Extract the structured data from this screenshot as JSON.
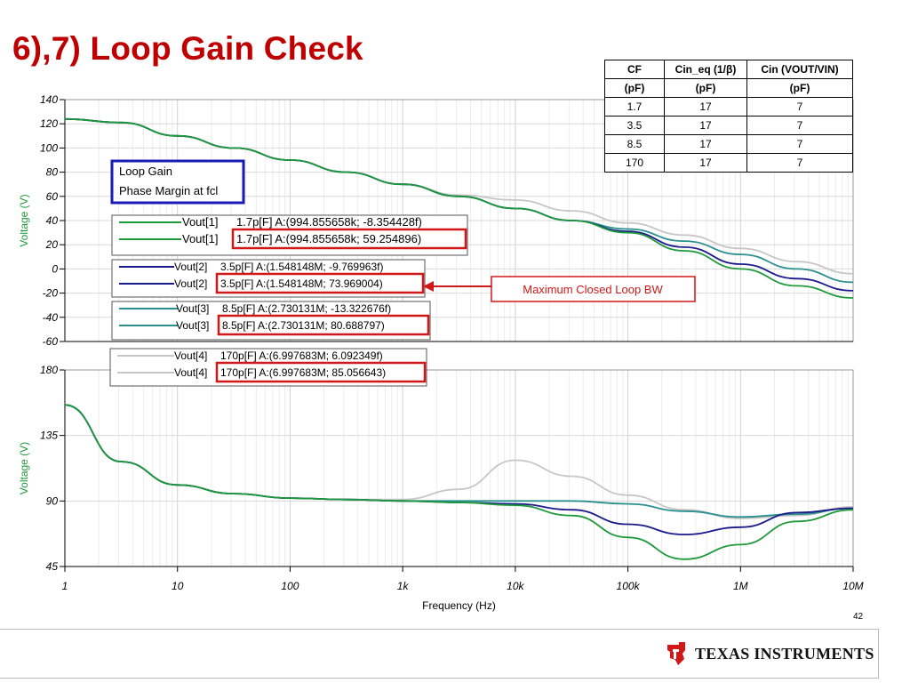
{
  "title": "6),7) Loop Gain Check",
  "table": {
    "headers": [
      "CF",
      "Cin_eq (1/β)",
      "Cin (VOUT/VIN)"
    ],
    "units": [
      "(pF)",
      "(pF)",
      "(pF)"
    ],
    "rows": [
      [
        "1.7",
        "17",
        "7"
      ],
      [
        "3.5",
        "17",
        "7"
      ],
      [
        "8.5",
        "17",
        "7"
      ],
      [
        "170",
        "17",
        "7"
      ]
    ]
  },
  "page_number": "42",
  "brand": "Texas Instruments",
  "colors": {
    "title": "#c00000",
    "green": "#1e9a3a",
    "navy": "#1a1a8c",
    "teal": "#2a8f8f",
    "gray": "#c6c6c6",
    "callout_blue": "#1a1ab4",
    "callout_red": "#d01818"
  },
  "chart_data": [
    {
      "type": "line",
      "xlabel": "Frequency (Hz)",
      "ylabel": "Voltage (V)",
      "x_scale": "log",
      "xlim": [
        1,
        10000000
      ],
      "ylim": [
        -60,
        140
      ],
      "x_ticks": [
        "1",
        "10",
        "100",
        "1k",
        "10k",
        "100k",
        "1M",
        "10M"
      ],
      "y_ticks": [
        "140",
        "120",
        "100",
        "80",
        "60",
        "40",
        "20",
        "0",
        "-20",
        "-40",
        "-60"
      ],
      "grid": true,
      "annotation": {
        "box": [
          "Loop Gain",
          "Phase Margin at fcl"
        ]
      },
      "legend": [
        {
          "series": "Vout[1]",
          "label": "1.7p[F]",
          "cursor_gain": "A:(994.855658k; -8.354428f)",
          "cursor_phase": "A:(994.855658k; 59.254896)"
        },
        {
          "series": "Vout[2]",
          "label": "3.5p[F]",
          "cursor_gain": "A:(1.548148M; -9.769963f)",
          "cursor_phase": "A:(1.548148M; 73.969004)"
        },
        {
          "series": "Vout[3]",
          "label": "8.5p[F]",
          "cursor_gain": "A:(2.730131M; -13.322676f)",
          "cursor_phase": "A:(2.730131M; 80.688797)"
        },
        {
          "series": "Vout[4]",
          "label": "170p[F]",
          "cursor_gain": "A:(6.997683M; 6.092349f)",
          "cursor_phase": "A:(6.997683M; 85.056643)"
        }
      ],
      "callout": "Maximum Closed Loop BW",
      "x": [
        1,
        3.16,
        10,
        31.6,
        100,
        316,
        1000,
        3160,
        10000,
        31600,
        100000,
        316000,
        1000000,
        3160000,
        10000000
      ],
      "series": [
        {
          "name": "Vout[1]",
          "color": "#1e9a3a",
          "values": [
            124,
            121,
            110,
            100,
            90,
            80,
            70,
            60,
            50,
            40,
            30,
            15,
            0,
            -14,
            -24
          ]
        },
        {
          "name": "Vout[2]",
          "color": "#1a1a8c",
          "values": [
            124,
            121,
            110,
            100,
            90,
            80,
            70,
            60,
            50,
            40,
            31,
            18,
            4,
            -8,
            -18
          ]
        },
        {
          "name": "Vout[3]",
          "color": "#2a8f8f",
          "values": [
            124,
            121,
            110,
            100,
            90,
            80,
            70,
            60,
            50,
            40,
            33,
            23,
            12,
            0,
            -11
          ]
        },
        {
          "name": "Vout[4]",
          "color": "#c6c6c6",
          "values": [
            124,
            121,
            110,
            100,
            90,
            80,
            70,
            61,
            57,
            48,
            38,
            28,
            17,
            6,
            -4
          ]
        }
      ]
    },
    {
      "type": "line",
      "xlabel": "Frequency (Hz)",
      "ylabel": "Voltage (V)",
      "x_scale": "log",
      "xlim": [
        1,
        10000000
      ],
      "ylim": [
        45,
        180
      ],
      "x_ticks": [
        "1",
        "10",
        "100",
        "1k",
        "10k",
        "100k",
        "1M",
        "10M"
      ],
      "y_ticks": [
        "180",
        "135",
        "90",
        "45"
      ],
      "grid": true,
      "x": [
        1,
        3.16,
        10,
        31.6,
        100,
        316,
        1000,
        3160,
        10000,
        31600,
        100000,
        316000,
        1000000,
        3160000,
        10000000
      ],
      "series": [
        {
          "name": "Vout[1]",
          "color": "#1e9a3a",
          "values": [
            156,
            117,
            101,
            95,
            92,
            91,
            90,
            89,
            87,
            80,
            65,
            50,
            60,
            76,
            84
          ]
        },
        {
          "name": "Vout[2]",
          "color": "#1a1a8c",
          "values": [
            156,
            117,
            101,
            95,
            92,
            91,
            90,
            89,
            88,
            84,
            74,
            67,
            72,
            82,
            85
          ]
        },
        {
          "name": "Vout[3]",
          "color": "#2a8f8f",
          "values": [
            156,
            117,
            101,
            95,
            92,
            91,
            90,
            90,
            90,
            90,
            88,
            83,
            79,
            81,
            85
          ]
        },
        {
          "name": "Vout[4]",
          "color": "#c6c6c6",
          "values": [
            156,
            117,
            101,
            95,
            92,
            91,
            91,
            98,
            118,
            107,
            94,
            84,
            78,
            80,
            86
          ]
        }
      ]
    }
  ]
}
